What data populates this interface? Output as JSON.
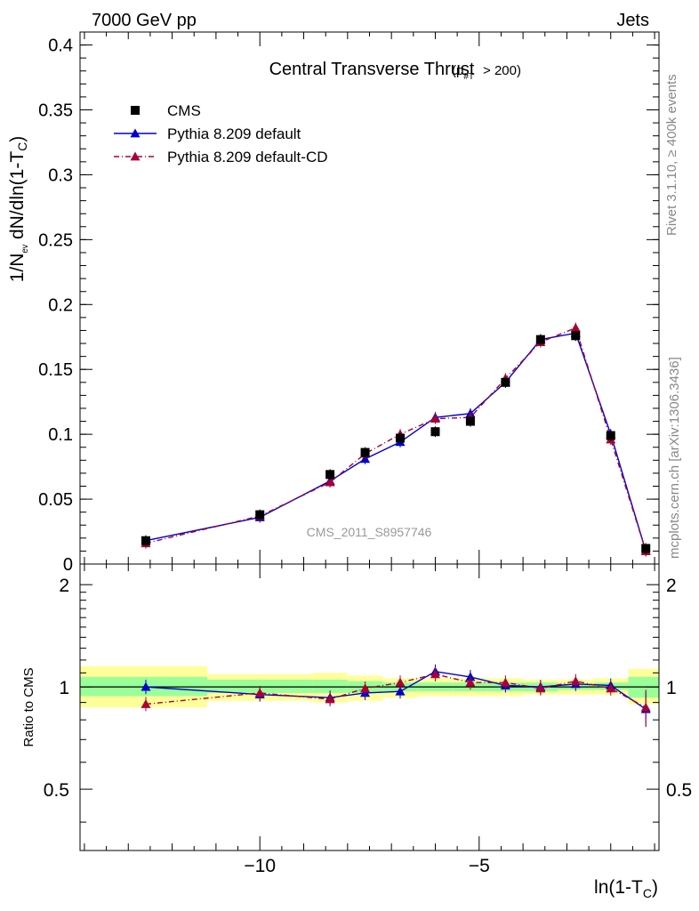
{
  "header": {
    "left": "7000 GeV pp",
    "right": "Jets"
  },
  "side_labels": {
    "rivet": "Rivet 3.1.10, ≥ 400k events",
    "mcplots": "mcplots.cern.ch [arXiv:1306.3436]"
  },
  "watermark": "CMS_2011_S8957746",
  "chart_data": [
    {
      "type": "scatter",
      "title": "Central Transverse Thrust",
      "title_suffix": "(p#T > 200)",
      "ylabel": "1/N dN/dln(1-T_C)",
      "xlabel": "ln(1-T_C)",
      "xlim": [
        -14.1,
        -0.9
      ],
      "ylim": [
        0,
        0.41
      ],
      "yticks": [
        0,
        0.05,
        0.1,
        0.15,
        0.2,
        0.25,
        0.3,
        0.35,
        0.4
      ],
      "ytick_labels": [
        "0",
        "0.05",
        "0.1",
        "0.15",
        "0.2",
        "0.25",
        "0.3",
        "0.35",
        "0.4"
      ],
      "x": [
        -12.6,
        -10.0,
        -8.4,
        -7.6,
        -6.8,
        -6.0,
        -5.2,
        -4.4,
        -3.6,
        -2.8,
        -2.0,
        -1.2
      ],
      "series": [
        {
          "name": "CMS",
          "color": "#000000",
          "marker": "square",
          "line": "none",
          "values": [
            0.018,
            0.038,
            0.069,
            0.086,
            0.097,
            0.102,
            0.11,
            0.14,
            0.173,
            0.176,
            0.099,
            0.012
          ]
        },
        {
          "name": "Pythia 8.209 default",
          "color": "#0000cc",
          "marker": "triangle",
          "line": "solid",
          "values": [
            0.018,
            0.036,
            0.064,
            0.081,
            0.094,
            0.113,
            0.116,
            0.14,
            0.173,
            0.178,
            0.1,
            0.01
          ]
        },
        {
          "name": "Pythia 8.209 default-CD",
          "color": "#aa0033",
          "marker": "triangle",
          "line": "dashdot",
          "values": [
            0.016,
            0.037,
            0.063,
            0.085,
            0.1,
            0.112,
            0.113,
            0.143,
            0.171,
            0.182,
            0.096,
            0.01
          ]
        }
      ],
      "legend_position": "top-left"
    },
    {
      "type": "line",
      "ylabel": "Ratio to CMS",
      "xlabel": "ln(1-T_C)",
      "log_y": true,
      "xlim": [
        -14.1,
        -0.9
      ],
      "ylim": [
        0.33,
        2.3
      ],
      "yticks": [
        0.5,
        1,
        2
      ],
      "ytick_labels": [
        "0.5",
        "1",
        "2"
      ],
      "xticks": [
        -10,
        -5
      ],
      "xtick_labels": [
        "−10",
        "−5"
      ],
      "x": [
        -12.6,
        -10.0,
        -8.4,
        -7.6,
        -6.8,
        -6.0,
        -5.2,
        -4.4,
        -3.6,
        -2.8,
        -2.0,
        -1.2
      ],
      "uncertainty_bands": {
        "bin_edges": [
          -14.1,
          -11.2,
          -8.8,
          -8.0,
          -7.2,
          -6.4,
          -5.6,
          -4.8,
          -4.0,
          -3.2,
          -2.4,
          -1.6,
          -0.9
        ],
        "inner": [
          [
            0.94,
            1.07
          ],
          [
            0.96,
            1.05
          ],
          [
            0.96,
            1.05
          ],
          [
            0.96,
            1.04
          ],
          [
            0.97,
            1.03
          ],
          [
            0.97,
            1.03
          ],
          [
            0.97,
            1.03
          ],
          [
            0.97,
            1.03
          ],
          [
            0.97,
            1.03
          ],
          [
            0.98,
            1.02
          ],
          [
            0.98,
            1.03
          ],
          [
            0.93,
            1.07
          ]
        ],
        "outer": [
          [
            0.87,
            1.15
          ],
          [
            0.91,
            1.09
          ],
          [
            0.9,
            1.1
          ],
          [
            0.91,
            1.08
          ],
          [
            0.93,
            1.06
          ],
          [
            0.94,
            1.06
          ],
          [
            0.94,
            1.06
          ],
          [
            0.94,
            1.06
          ],
          [
            0.95,
            1.05
          ],
          [
            0.95,
            1.05
          ],
          [
            0.95,
            1.06
          ],
          [
            0.89,
            1.13
          ]
        ],
        "inner_color": "#99ff99",
        "outer_color": "#ffff99"
      },
      "series": [
        {
          "name": "Pythia 8.209 default",
          "color": "#0000cc",
          "marker": "triangle",
          "line": "solid",
          "values": [
            1.0,
            0.95,
            0.93,
            0.96,
            0.97,
            1.11,
            1.07,
            1.01,
            1.0,
            1.02,
            1.01,
            0.86
          ]
        },
        {
          "name": "Pythia 8.209 default-CD",
          "color": "#aa0033",
          "marker": "triangle",
          "line": "dashdot",
          "values": [
            0.89,
            0.96,
            0.92,
            0.99,
            1.03,
            1.09,
            1.03,
            1.03,
            0.99,
            1.04,
            0.99,
            0.87
          ]
        }
      ]
    }
  ]
}
